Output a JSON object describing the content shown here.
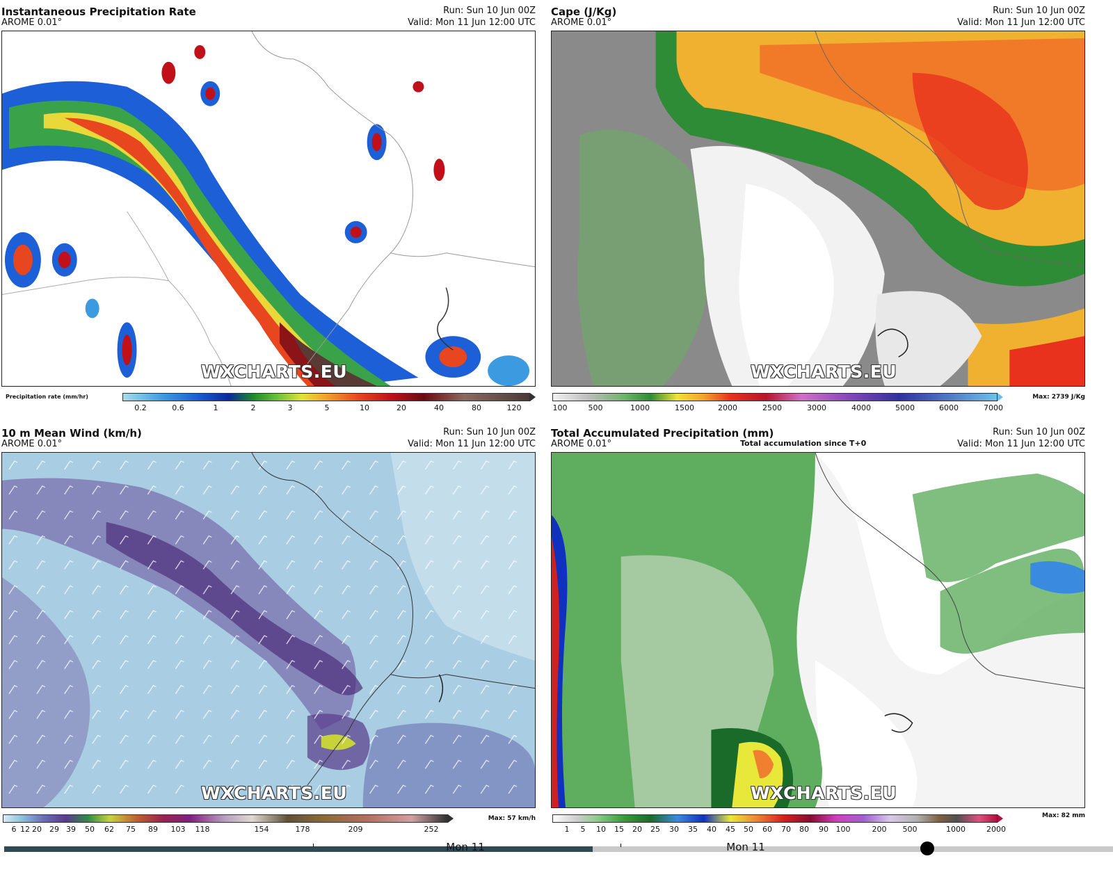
{
  "panels": {
    "precip": {
      "title": "Instantaneous Precipitation Rate",
      "model": "AROME 0.01°",
      "run": "Run: Sun 10 Jun 00Z",
      "valid": "Valid: Mon 11 Jun 12:00 UTC",
      "watermark": "WXCHARTS.EU",
      "colorbar_label": "Precipitation rate (mm/hr)",
      "ticks": [
        "0.2",
        "0.6",
        "1",
        "2",
        "3",
        "5",
        "10",
        "20",
        "40",
        "80",
        "120"
      ]
    },
    "cape": {
      "title": "Cape (J/Kg)",
      "model": "AROME 0.01°",
      "run": "Run: Sun 10 Jun 00Z",
      "valid": "Valid: Mon 11 Jun 12:00 UTC",
      "watermark": "WXCHARTS.EU",
      "max": "Max: 2739 J/Kg",
      "ticks": [
        "100",
        "500",
        "1000",
        "1500",
        "2000",
        "2500",
        "3000",
        "4000",
        "5000",
        "6000",
        "7000"
      ]
    },
    "wind": {
      "title": "10 m Mean Wind (km/h)",
      "model": "AROME 0.01°",
      "run": "Run: Sun 10 Jun 00Z",
      "valid": "Valid: Mon 11 Jun 12:00 UTC",
      "watermark": "WXCHARTS.EU",
      "max": "Max: 57 km/h",
      "ticks": [
        "6",
        "12",
        "20",
        "29",
        "39",
        "50",
        "62",
        "75",
        "89",
        "103",
        "118",
        "154",
        "178",
        "209",
        "252"
      ]
    },
    "accum": {
      "title": "Total Accumulated Precipitation (mm)",
      "subtitle": "Total accumulation since T+0",
      "model": "AROME 0.01°",
      "run": "Run: Sun 10 Jun 00Z",
      "valid": "Valid: Mon 11 Jun 12:00 UTC",
      "watermark": "WXCHARTS.EU",
      "max": "Max: 82 mm",
      "ticks": [
        "1",
        "5",
        "10",
        "15",
        "20",
        "25",
        "30",
        "35",
        "40",
        "45",
        "50",
        "60",
        "70",
        "80",
        "90",
        "100",
        "200",
        "500",
        "1000",
        "2000"
      ]
    }
  },
  "timeline": {
    "labels": [
      "Mon 11",
      "Mon 11"
    ]
  },
  "colors": {
    "precip_scale": [
      "#a7dbe8",
      "#3b9ae0",
      "#1c5fd6",
      "#0b2a9e",
      "#1e8a2c",
      "#6cc13a",
      "#e2e23a",
      "#f4a12a",
      "#e8461e",
      "#c0111b",
      "#6b0a10",
      "#8c6a60",
      "#4a3a38"
    ],
    "cape_scale": [
      "#f2f2f2",
      "#bdbdbd",
      "#6fb46a",
      "#2f8c36",
      "#f0e23a",
      "#f5a12a",
      "#e8321e",
      "#b8142a",
      "#d070c8",
      "#8a4ab8",
      "#3030a0",
      "#6fc0e8"
    ],
    "wind_scale": [
      "#d8ecf5",
      "#8fc2de",
      "#6a6fb0",
      "#5a3a8a",
      "#2f8a4a",
      "#c8d23a",
      "#c06030",
      "#9a2050",
      "#802080",
      "#b8a0c0",
      "#e0d8d0",
      "#605038",
      "#8a6a3a",
      "#b07060",
      "#d0a0a0",
      "#303030"
    ],
    "accum_scale": [
      "#ffffff",
      "#d0d0d0",
      "#8fc98a",
      "#3a9a40",
      "#1a6a2a",
      "#3a8ae0",
      "#1030c0",
      "#e8e83a",
      "#f08030",
      "#d02020",
      "#8a0a30",
      "#d040c0",
      "#a060d0",
      "#d8c8e8",
      "#b0b0b0",
      "#806040",
      "#505050",
      "#e05080",
      "#b01040"
    ]
  }
}
